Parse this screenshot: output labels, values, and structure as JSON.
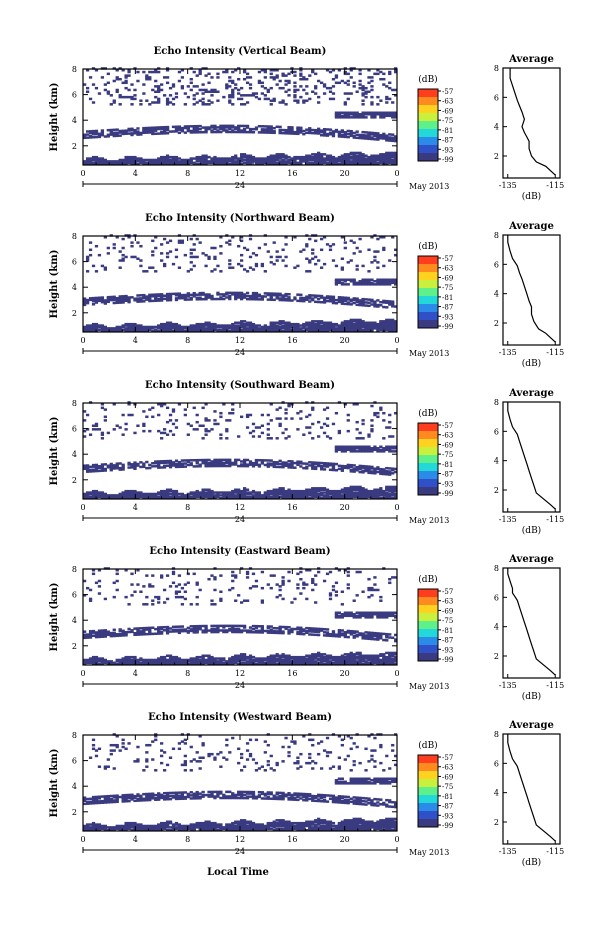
{
  "chart_data": {
    "type": "heatmap",
    "x_ticks": [
      "0",
      "4",
      "8",
      "12",
      "16",
      "20",
      "0"
    ],
    "x_day_label": "24",
    "date_label": "May 2013",
    "xlabel": "Local Time",
    "ylabel": "Height (km)",
    "y_ticks": [
      "2",
      "4",
      "6",
      "8"
    ],
    "ylim_km": [
      0.5,
      8
    ],
    "colorbar": {
      "unit": "(dB)",
      "ticks": [
        "-57",
        "-63",
        "-69",
        "-75",
        "-81",
        "-87",
        "-93",
        "-99"
      ],
      "colors": [
        "#ff3d1f",
        "#ff8a1f",
        "#ffd21f",
        "#c8f03c",
        "#5ef08a",
        "#22d8d8",
        "#2a8ce8",
        "#3050c8",
        "#3a3a80"
      ]
    },
    "average": {
      "title": "Average",
      "xlabel": "(dB)",
      "y_ticks": [
        "2",
        "4",
        "6",
        "8"
      ]
    },
    "panels": [
      {
        "title": "Echo Intensity (Vertical Beam)",
        "avg_x_ticks": [
          "-135",
          "-115"
        ],
        "average_profile": [
          [
            -115,
            0.7
          ],
          [
            -117,
            1.0
          ],
          [
            -119,
            1.3
          ],
          [
            -123,
            1.6
          ],
          [
            -125,
            2.0
          ],
          [
            -126,
            2.5
          ],
          [
            -126,
            3.0
          ],
          [
            -127,
            3.3
          ],
          [
            -128,
            3.6
          ],
          [
            -129,
            4.0
          ],
          [
            -128,
            4.5
          ],
          [
            -129,
            5.0
          ],
          [
            -130,
            5.4
          ],
          [
            -131,
            5.8
          ],
          [
            -132,
            6.3
          ],
          [
            -133,
            6.8
          ],
          [
            -134,
            7.3
          ],
          [
            -134,
            8.0
          ]
        ]
      },
      {
        "title": "Echo Intensity (Northward Beam)",
        "avg_x_ticks": [
          "-135",
          "-115"
        ],
        "average_profile": [
          [
            -115,
            0.7
          ],
          [
            -117,
            1.0
          ],
          [
            -119,
            1.3
          ],
          [
            -122,
            1.6
          ],
          [
            -124,
            2.1
          ],
          [
            -125,
            2.6
          ],
          [
            -125,
            3.1
          ],
          [
            -126,
            3.5
          ],
          [
            -127,
            4.0
          ],
          [
            -128,
            4.5
          ],
          [
            -129,
            5.0
          ],
          [
            -130,
            5.4
          ],
          [
            -131,
            5.9
          ],
          [
            -133,
            6.4
          ],
          [
            -134,
            6.9
          ],
          [
            -135,
            7.5
          ],
          [
            -135,
            8.0
          ]
        ]
      },
      {
        "title": "Echo Intensity (Southward Beam)",
        "avg_x_ticks": [
          "-135",
          "-115"
        ],
        "average_profile": [
          [
            -115,
            0.7
          ],
          [
            -117,
            1.0
          ],
          [
            -120,
            1.4
          ],
          [
            -123,
            1.8
          ],
          [
            -124,
            2.3
          ],
          [
            -125,
            2.8
          ],
          [
            -126,
            3.3
          ],
          [
            -127,
            3.8
          ],
          [
            -128,
            4.3
          ],
          [
            -129,
            4.8
          ],
          [
            -130,
            5.3
          ],
          [
            -131,
            5.8
          ],
          [
            -133,
            6.3
          ],
          [
            -134,
            6.8
          ],
          [
            -135,
            7.4
          ],
          [
            -135,
            8.0
          ]
        ]
      },
      {
        "title": "Echo Intensity (Eastward Beam)",
        "avg_x_ticks": [
          "-135",
          "-115"
        ],
        "average_profile": [
          [
            -115,
            0.7
          ],
          [
            -117,
            1.0
          ],
          [
            -120,
            1.4
          ],
          [
            -123,
            1.8
          ],
          [
            -124,
            2.3
          ],
          [
            -125,
            2.8
          ],
          [
            -126,
            3.3
          ],
          [
            -127,
            3.8
          ],
          [
            -128,
            4.3
          ],
          [
            -129,
            4.8
          ],
          [
            -130,
            5.3
          ],
          [
            -131,
            5.8
          ],
          [
            -133,
            6.3
          ],
          [
            -133,
            6.6
          ],
          [
            -134,
            7.1
          ],
          [
            -135,
            7.6
          ],
          [
            -135,
            8.0
          ]
        ]
      },
      {
        "title": "Echo Intensity (Westward Beam)",
        "avg_x_ticks": [
          "-135",
          "-115"
        ],
        "average_profile": [
          [
            -115,
            0.7
          ],
          [
            -117,
            1.0
          ],
          [
            -120,
            1.4
          ],
          [
            -123,
            1.8
          ],
          [
            -124,
            2.3
          ],
          [
            -125,
            2.8
          ],
          [
            -126,
            3.3
          ],
          [
            -127,
            3.8
          ],
          [
            -128,
            4.3
          ],
          [
            -129,
            4.8
          ],
          [
            -130,
            5.3
          ],
          [
            -131,
            5.8
          ],
          [
            -133,
            6.3
          ],
          [
            -134,
            6.8
          ],
          [
            -135,
            7.4
          ],
          [
            -135,
            8.0
          ]
        ]
      }
    ]
  }
}
